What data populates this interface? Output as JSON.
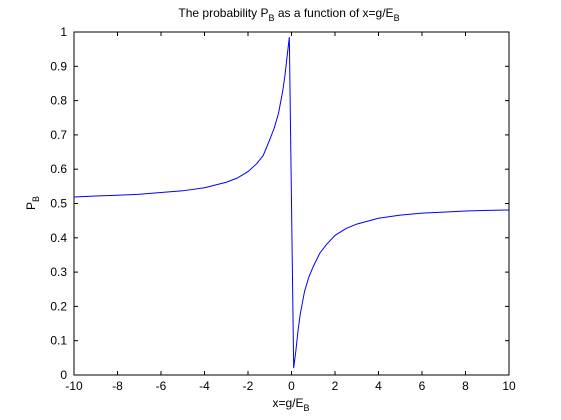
{
  "chart_data": {
    "type": "line",
    "title": {
      "main": "The probability P",
      "sub": "B",
      "suffix": " as a function of x=g/E",
      "sub2": "B"
    },
    "xlabel": {
      "main": "x=g/E",
      "sub": "B"
    },
    "ylabel": {
      "main": "P",
      "sub": "B"
    },
    "xlim": [
      -10,
      10
    ],
    "ylim": [
      0,
      1
    ],
    "x_ticks": [
      -10,
      -8,
      -6,
      -4,
      -2,
      0,
      2,
      4,
      6,
      8,
      10
    ],
    "y_ticks": [
      0,
      0.1,
      0.2,
      0.3,
      0.4,
      0.5,
      0.6,
      0.7,
      0.8,
      0.9,
      1
    ],
    "x_tick_labels": [
      "-10",
      "-8",
      "-6",
      "-4",
      "-2",
      "0",
      "2",
      "4",
      "6",
      "8",
      "10"
    ],
    "y_tick_labels": [
      "0",
      "0.1",
      "0.2",
      "0.3",
      "0.4",
      "0.5",
      "0.6",
      "0.7",
      "0.8",
      "0.9",
      "1"
    ],
    "grid": false,
    "line_color": "#0000ff",
    "series": [
      {
        "x": [
          -10,
          -9,
          -8,
          -7,
          -6,
          -5,
          -4,
          -3,
          -2.5,
          -2,
          -1.6,
          -1.3,
          -1,
          -0.8,
          -0.6,
          -0.4,
          -0.3,
          -0.2,
          -0.1,
          0,
          0.1,
          0.2,
          0.3,
          0.4,
          0.6,
          0.8,
          1,
          1.3,
          1.6,
          2,
          2.5,
          3,
          4,
          5,
          6,
          7,
          8,
          9,
          10
        ],
        "y": [
          0.519,
          0.522,
          0.524,
          0.527,
          0.532,
          0.537,
          0.546,
          0.562,
          0.574,
          0.593,
          0.616,
          0.64,
          0.686,
          0.719,
          0.762,
          0.829,
          0.874,
          0.93,
          0.985,
          0.5,
          0.02,
          0.07,
          0.129,
          0.177,
          0.244,
          0.286,
          0.316,
          0.355,
          0.38,
          0.407,
          0.427,
          0.44,
          0.457,
          0.466,
          0.472,
          0.475,
          0.478,
          0.48,
          0.481
        ]
      }
    ]
  }
}
